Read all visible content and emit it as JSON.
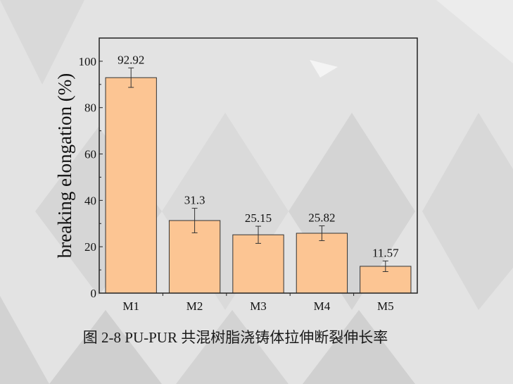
{
  "caption": "图 2-8 PU-PUR 共混树脂浇铸体拉伸断裂伸长率",
  "chart_data": {
    "type": "bar",
    "title": "",
    "xlabel": "",
    "ylabel": "breaking elongation (%)",
    "categories": [
      "M1",
      "M2",
      "M3",
      "M4",
      "M5"
    ],
    "values": [
      92.92,
      31.3,
      25.15,
      25.82,
      11.57
    ],
    "errors": [
      4.2,
      5.3,
      3.7,
      3.2,
      2.3
    ],
    "data_labels": [
      "92.92",
      "31.3",
      "25.15",
      "25.82",
      "11.57"
    ],
    "ylim": [
      0,
      110
    ],
    "yticks": [
      0,
      20,
      40,
      60,
      80,
      100
    ],
    "grid": false,
    "bar_color": "#fcc593",
    "bar_edge_color": "#333333"
  }
}
